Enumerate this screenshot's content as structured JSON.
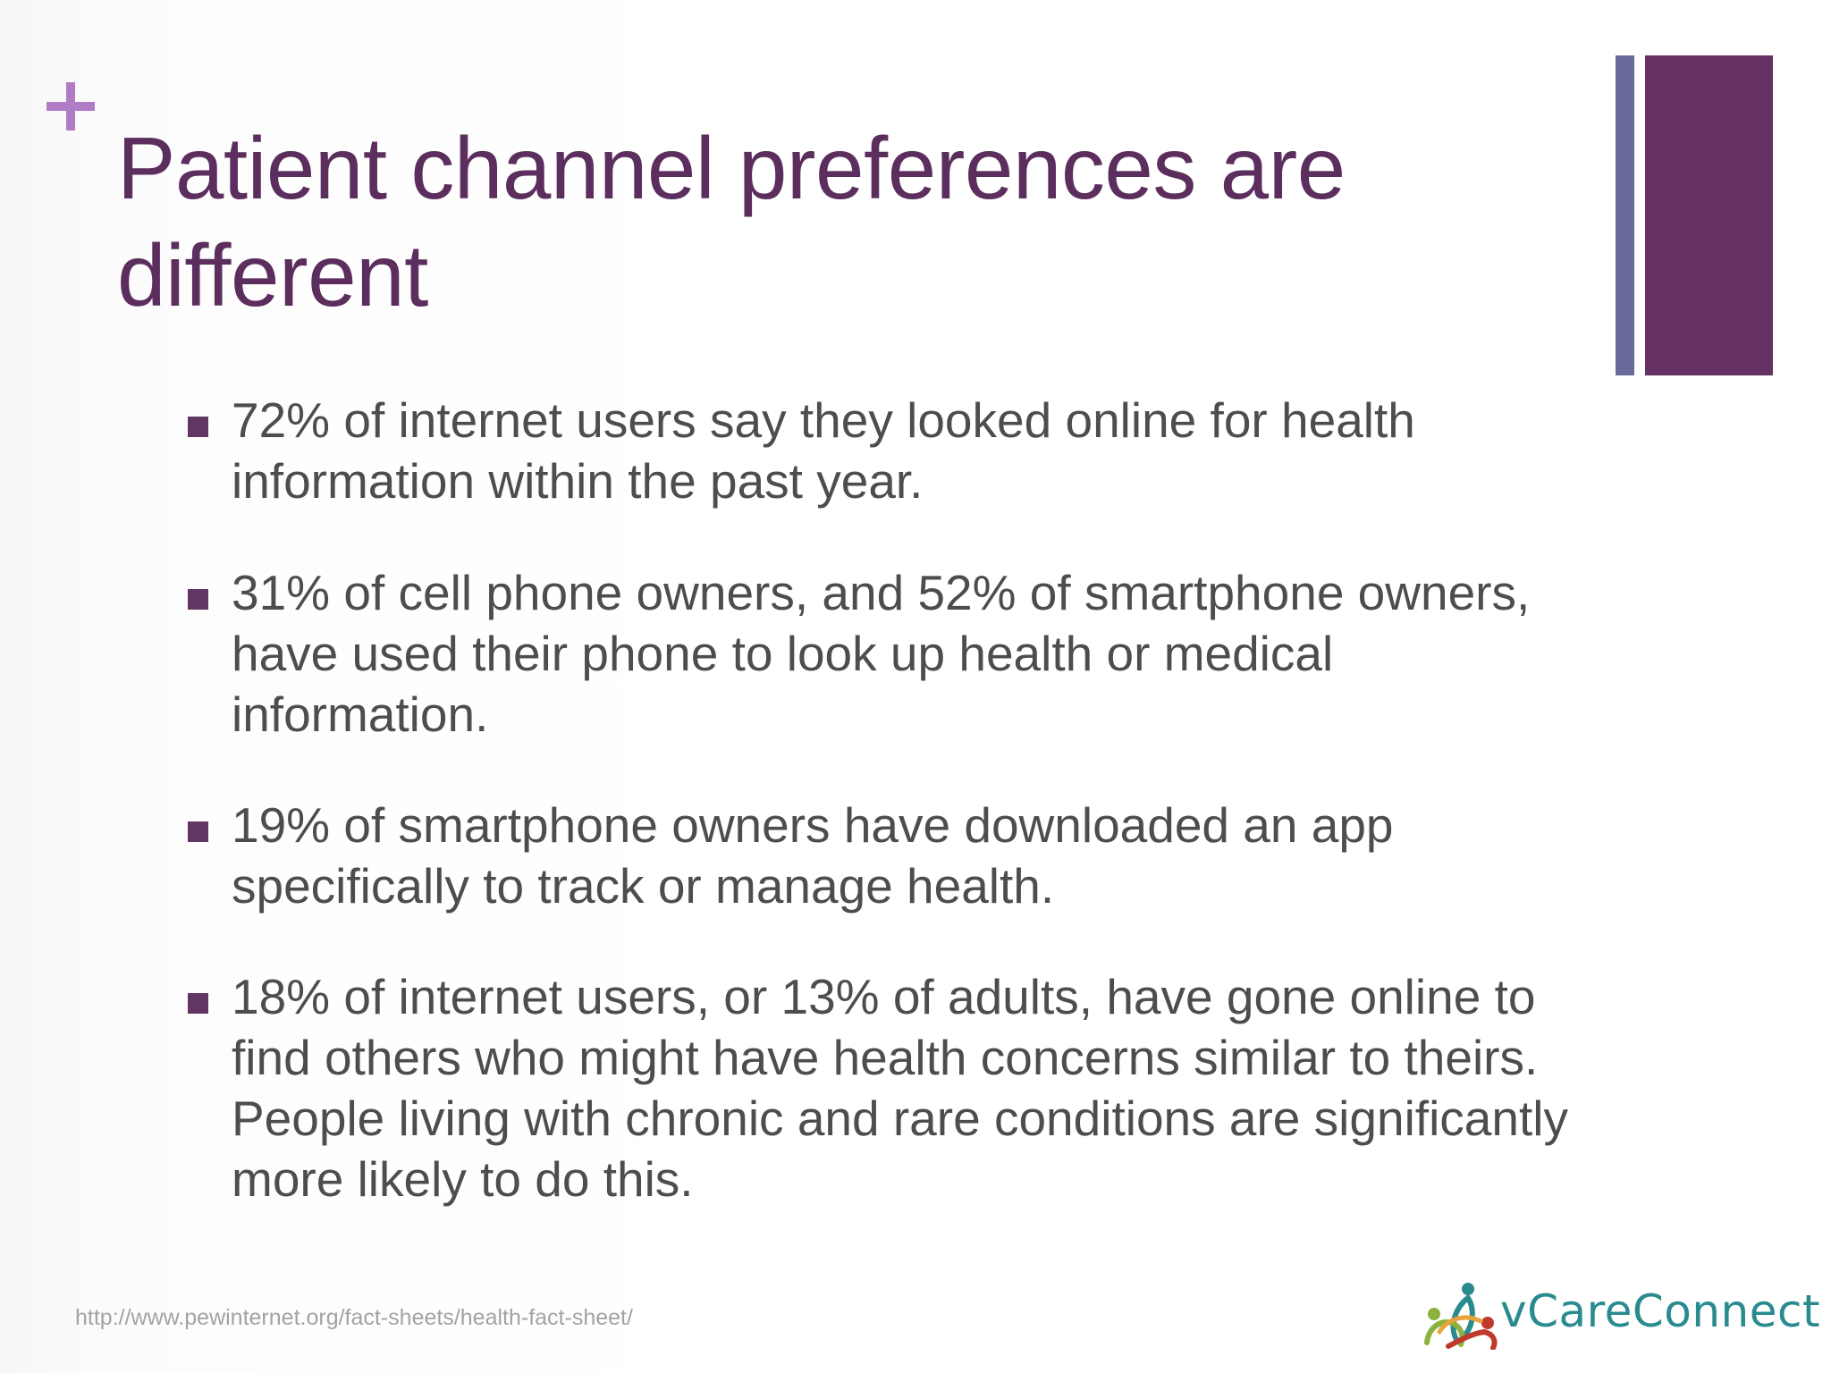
{
  "slide": {
    "title": "Patient channel preferences are different",
    "bullets": [
      "72% of internet users say they looked online for health information within the past year.",
      "31% of cell phone owners, and 52% of smartphone owners, have used their phone to look up health or medical information.",
      "19% of smartphone owners have downloaded an app specifically to track or manage health.",
      "18% of internet users, or 13% of adults, have gone online to find others who might have health concerns similar to theirs. People living with chronic and rare conditions are significantly more likely to do this."
    ],
    "source_url": "http://www.pewinternet.org/fact-sheets/health-fact-sheet/"
  },
  "logo": {
    "text": "vCareConnect",
    "icon": "people-circle-logo-icon"
  },
  "decor": {
    "plus_icon": "plus-icon"
  },
  "colors": {
    "title": "#5c2e5e",
    "body_text": "#4d4d4d",
    "bullet_marker": "#623663",
    "plus": "#b07cc6",
    "bar_thin": "#6a6a9a",
    "bar_wide": "#653263",
    "logo_text": "#2a8b8f",
    "source_url": "#a3a3a3"
  }
}
